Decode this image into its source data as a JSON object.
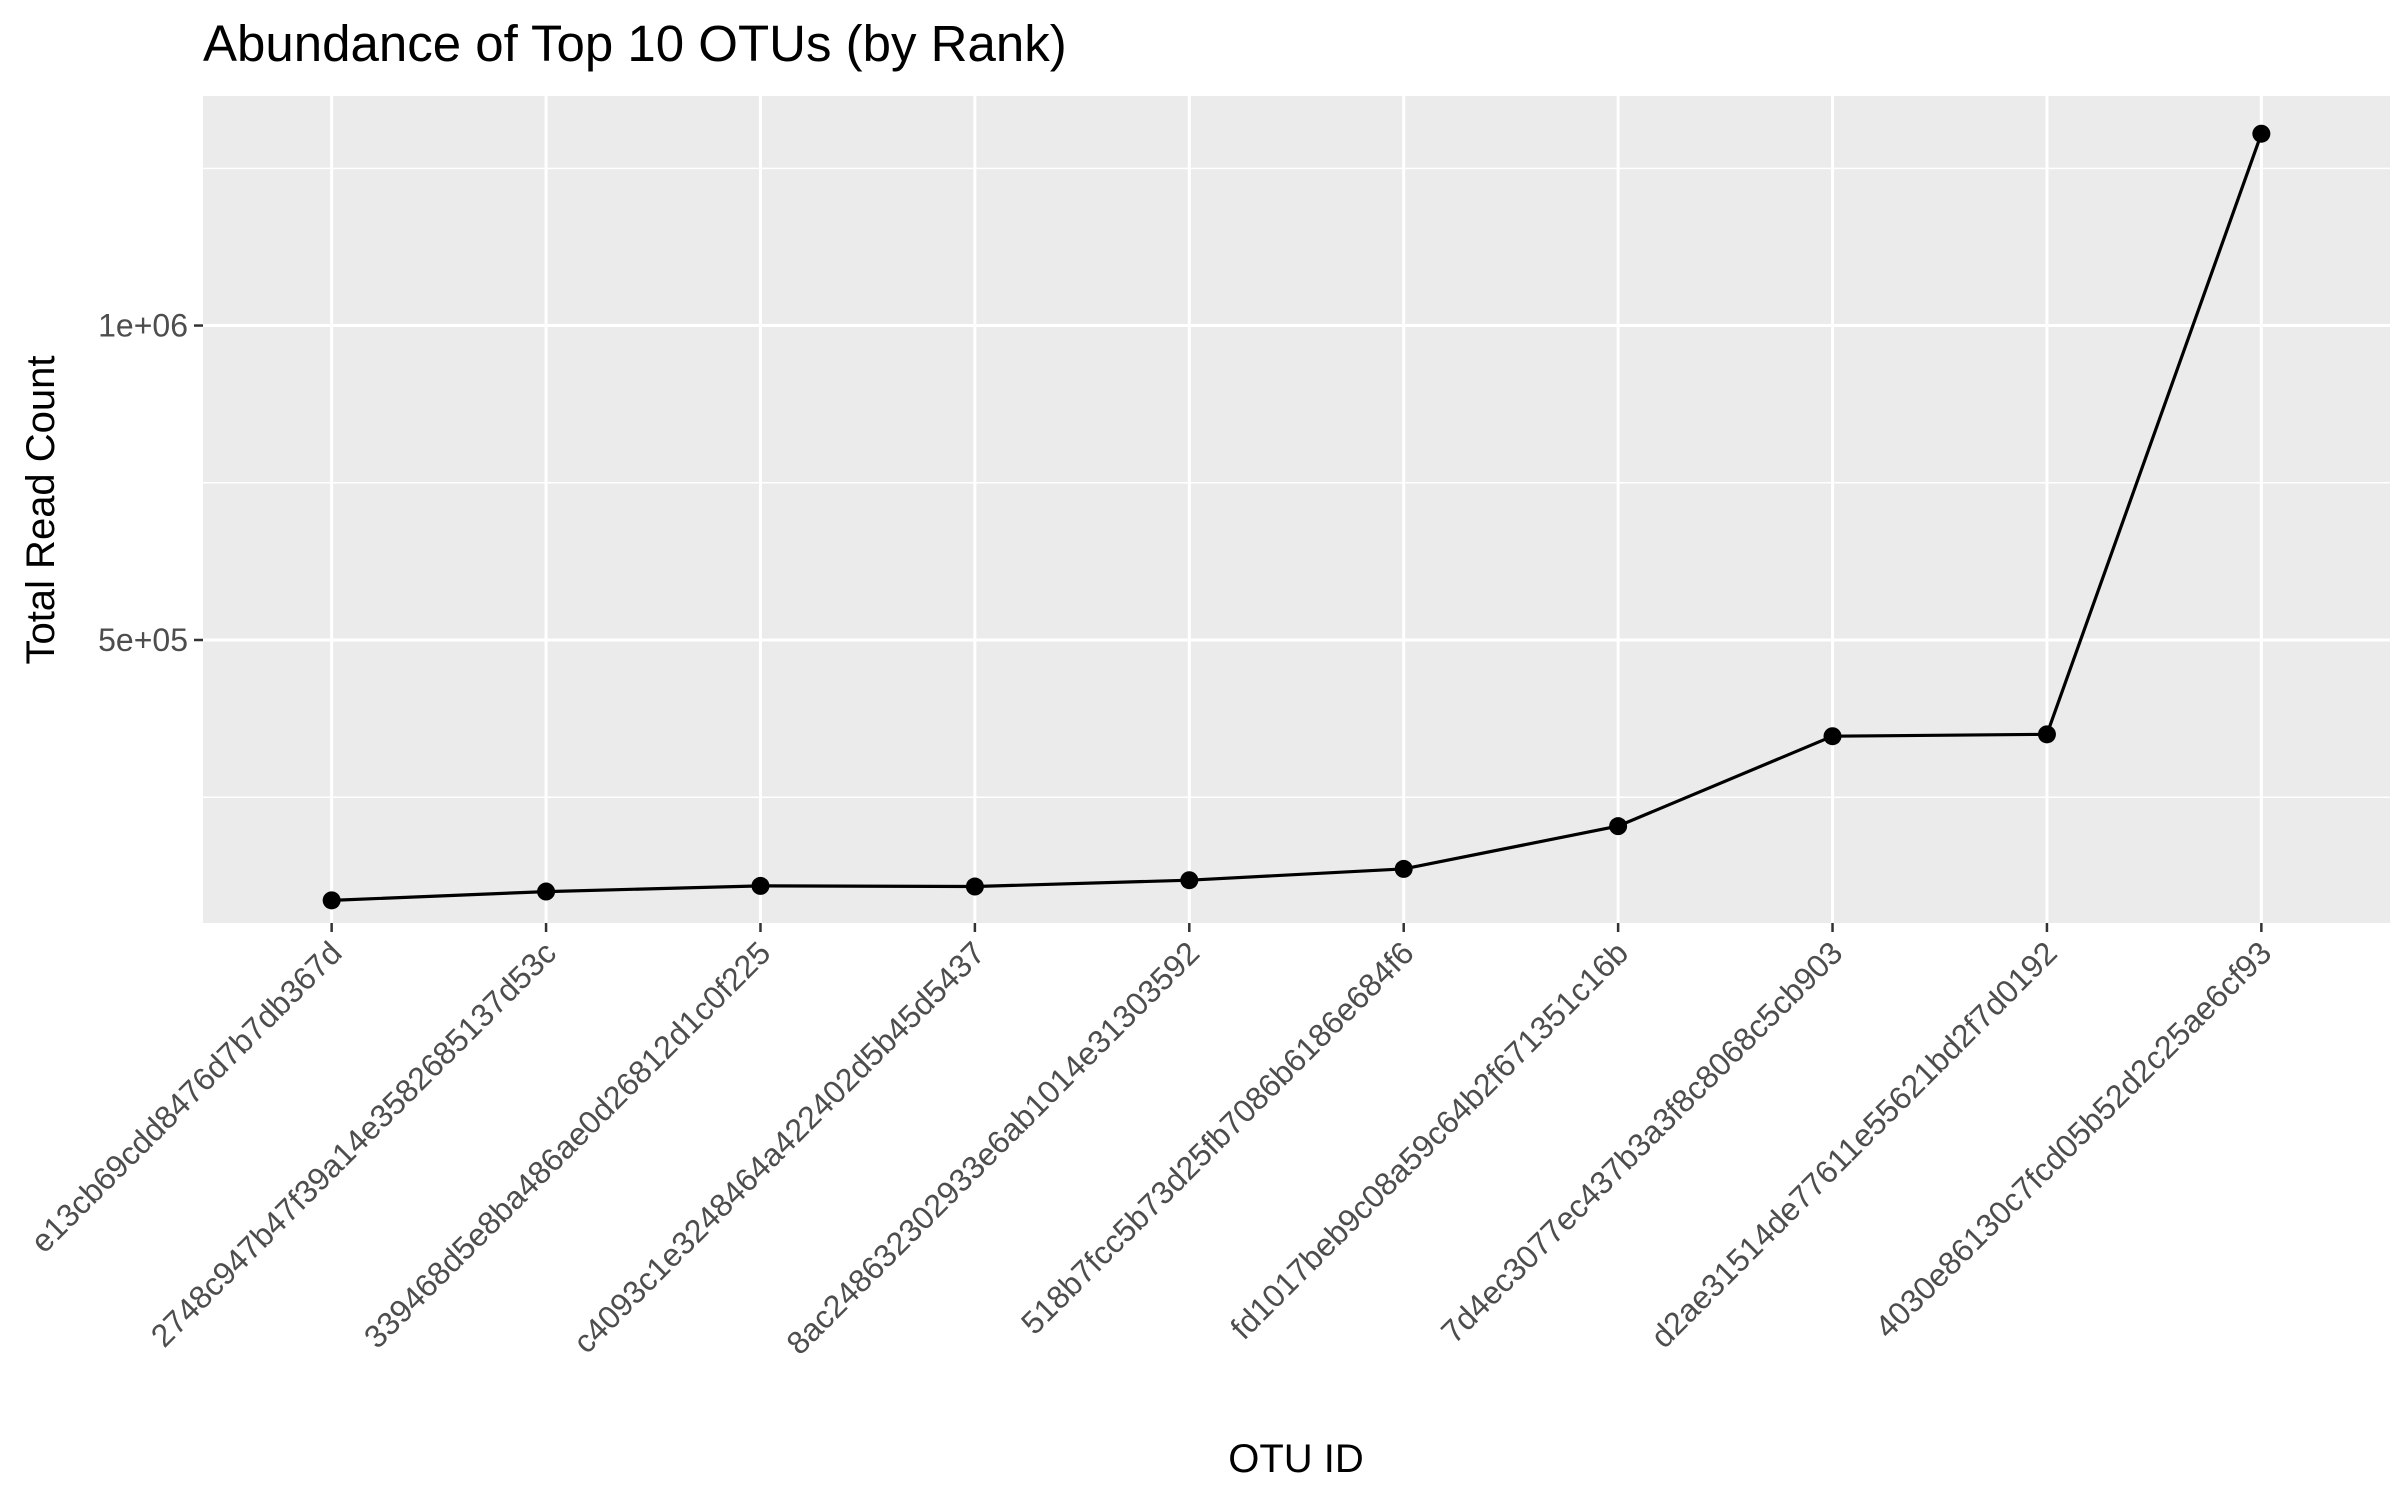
{
  "chart_data": {
    "type": "line",
    "title": "Abundance of Top 10 OTUs (by Rank)",
    "xlabel": "OTU ID",
    "ylabel": "Total Read Count",
    "categories": [
      "e13cb69cdd8476d7b7db367d",
      "2748c947b47f39a14e358268513 7d53c",
      "339468d5e8ba486ae0d26812d1c0f225",
      "c4093c1e324846 4a422402d5b45d5437",
      "8ac248632302933e6ab1014e31303592",
      "518b7fcc5b73d25fb7086b6186e684f6",
      "fd1017beb9c08a59c64b2f671351c16b",
      "7d4ec3077ec437b3a3f8c8068c5cb903",
      "d2ae31514de77611e55621bd2f7d0192",
      "4030e86130c7fcd05b52d2c25ae6cf93"
    ],
    "values": [
      86000,
      100000,
      109000,
      108000,
      118000,
      136000,
      204000,
      347000,
      350000,
      1305000
    ],
    "y_ticks": [
      500000,
      1000000
    ],
    "y_tick_labels": [
      "5e+05",
      "1e+06"
    ],
    "ylim": [
      50000,
      1365000
    ],
    "grid": true,
    "panel_background": "#ebebeb",
    "line_color": "#000000"
  }
}
